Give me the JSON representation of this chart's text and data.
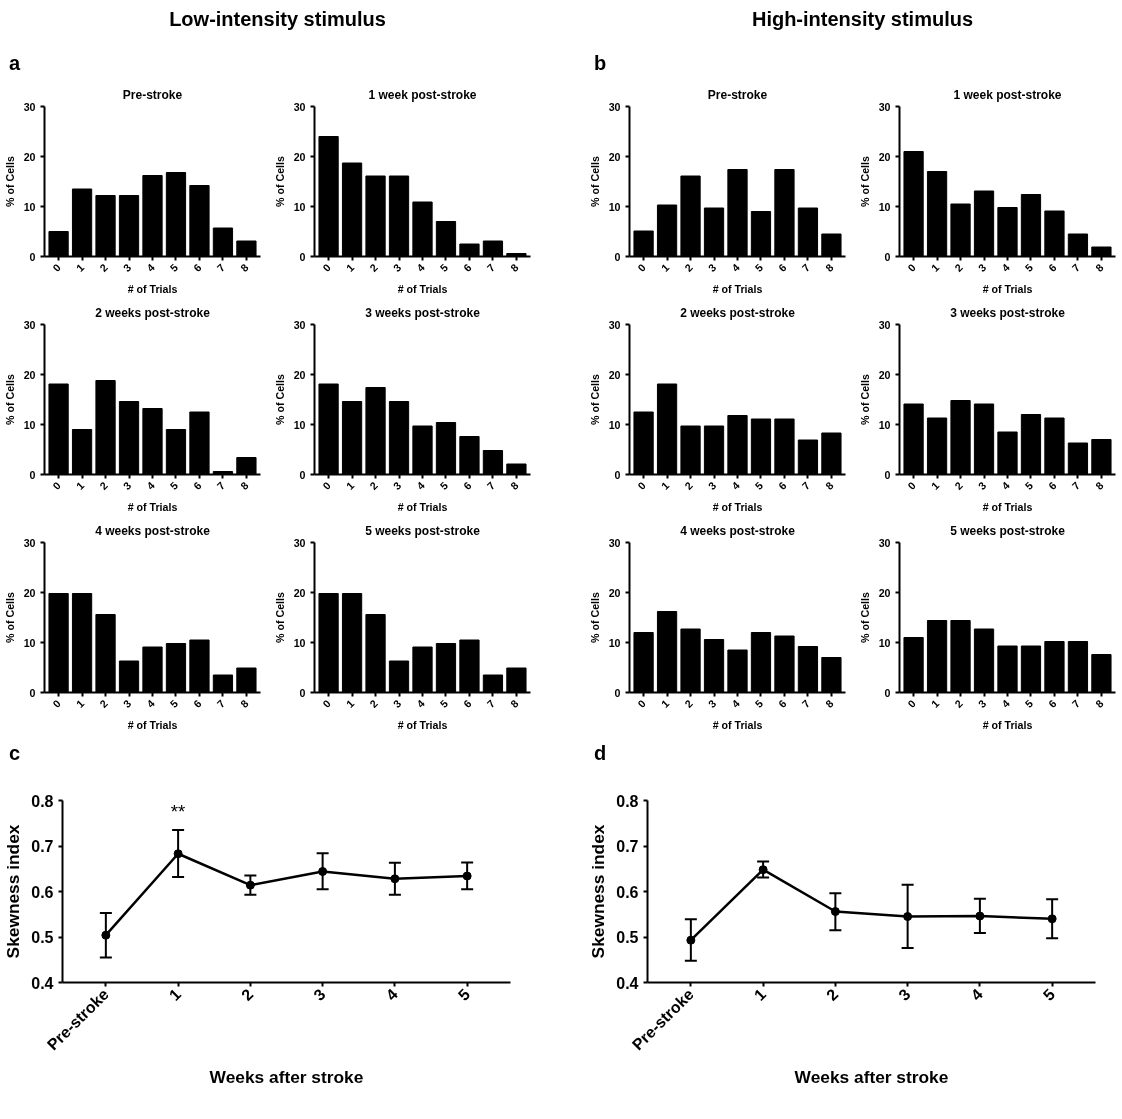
{
  "chart_data": [
    {
      "type": "bar",
      "title": "Pre-stroke",
      "xlabel": "# of Trials",
      "ylabel": "% of Cells",
      "annotations": [
        "Low-intensity stimulus",
        "a"
      ],
      "categories": [
        "0",
        "1",
        "2",
        "3",
        "4",
        "5",
        "6",
        "7",
        "8"
      ],
      "values": [
        5,
        13.5,
        12.2,
        12.2,
        16.2,
        16.8,
        14.2,
        5.7,
        3.1
      ],
      "color": "#000000",
      "ylim": [
        0,
        30
      ],
      "yticks": [
        0,
        10,
        20,
        30
      ]
    },
    {
      "type": "bar",
      "title": "1 week post-stroke",
      "xlabel": "# of Trials",
      "ylabel": "% of Cells",
      "categories": [
        "0",
        "1",
        "2",
        "3",
        "4",
        "5",
        "6",
        "7",
        "8"
      ],
      "values": [
        24,
        18.7,
        16.1,
        16.1,
        10.9,
        7.0,
        2.5,
        3.1,
        0.6
      ],
      "color": "#000000",
      "ylim": [
        0,
        30
      ],
      "yticks": [
        0,
        10,
        20,
        30
      ]
    },
    {
      "type": "bar",
      "title": "2 weeks post-stroke",
      "xlabel": "# of Trials",
      "ylabel": "% of Cells",
      "categories": [
        "0",
        "1",
        "2",
        "3",
        "4",
        "5",
        "6",
        "7",
        "8"
      ],
      "values": [
        18.1,
        9.0,
        18.8,
        14.6,
        13.2,
        9.0,
        12.5,
        0.6,
        3.4
      ],
      "color": "#000000",
      "ylim": [
        0,
        30
      ],
      "yticks": [
        0,
        10,
        20,
        30
      ]
    },
    {
      "type": "bar",
      "title": "3 weeks post-stroke",
      "xlabel": "# of Trials",
      "ylabel": "% of Cells",
      "categories": [
        "0",
        "1",
        "2",
        "3",
        "4",
        "5",
        "6",
        "7",
        "8"
      ],
      "values": [
        18.1,
        14.6,
        17.4,
        14.6,
        9.7,
        10.4,
        7.6,
        4.8,
        2.1
      ],
      "color": "#000000",
      "ylim": [
        0,
        30
      ],
      "yticks": [
        0,
        10,
        20,
        30
      ]
    },
    {
      "type": "bar",
      "title": "4 weeks post-stroke",
      "xlabel": "# of Trials",
      "ylabel": "% of Cells",
      "categories": [
        "0",
        "1",
        "2",
        "3",
        "4",
        "5",
        "6",
        "7",
        "8"
      ],
      "values": [
        19.8,
        19.8,
        15.6,
        6.3,
        9.1,
        9.8,
        10.5,
        3.5,
        4.9
      ],
      "color": "#000000",
      "ylim": [
        0,
        30
      ],
      "yticks": [
        0,
        10,
        20,
        30
      ]
    },
    {
      "type": "bar",
      "title": "5 weeks post-stroke",
      "xlabel": "# of Trials",
      "ylabel": "% of Cells",
      "categories": [
        "0",
        "1",
        "2",
        "3",
        "4",
        "5",
        "6",
        "7",
        "8"
      ],
      "values": [
        19.8,
        19.8,
        15.6,
        6.3,
        9.1,
        9.8,
        10.5,
        3.5,
        4.9
      ],
      "color": "#000000",
      "ylim": [
        0,
        30
      ],
      "yticks": [
        0,
        10,
        20,
        30
      ]
    },
    {
      "type": "bar",
      "title": "Pre-stroke",
      "xlabel": "# of Trials",
      "ylabel": "% of Cells",
      "annotations": [
        "High-intensity stimulus",
        "b"
      ],
      "categories": [
        "0",
        "1",
        "2",
        "3",
        "4",
        "5",
        "6",
        "7",
        "8"
      ],
      "values": [
        5.1,
        10.3,
        16.1,
        9.7,
        17.4,
        9.0,
        17.4,
        9.7,
        4.5
      ],
      "color": "#000000",
      "ylim": [
        0,
        30
      ],
      "yticks": [
        0,
        10,
        20,
        30
      ]
    },
    {
      "type": "bar",
      "title": "1 week post-stroke",
      "xlabel": "# of Trials",
      "ylabel": "% of Cells",
      "categories": [
        "0",
        "1",
        "2",
        "3",
        "4",
        "5",
        "6",
        "7",
        "8"
      ],
      "values": [
        21.0,
        17.0,
        10.5,
        13.1,
        9.8,
        12.4,
        9.1,
        4.5,
        1.9
      ],
      "color": "#000000",
      "ylim": [
        0,
        30
      ],
      "yticks": [
        0,
        10,
        20,
        30
      ]
    },
    {
      "type": "bar",
      "title": "2 weeks post-stroke",
      "xlabel": "# of Trials",
      "ylabel": "% of Cells",
      "categories": [
        "0",
        "1",
        "2",
        "3",
        "4",
        "5",
        "6",
        "7",
        "8"
      ],
      "values": [
        12.5,
        18.1,
        9.7,
        9.7,
        11.8,
        11.1,
        11.1,
        6.9,
        8.3
      ],
      "color": "#000000",
      "ylim": [
        0,
        30
      ],
      "yticks": [
        0,
        10,
        20,
        30
      ]
    },
    {
      "type": "bar",
      "title": "3 weeks post-stroke",
      "xlabel": "# of Trials",
      "ylabel": "% of Cells",
      "categories": [
        "0",
        "1",
        "2",
        "3",
        "4",
        "5",
        "6",
        "7",
        "8"
      ],
      "values": [
        14.1,
        11.3,
        14.8,
        14.1,
        8.5,
        12.0,
        11.3,
        6.3,
        7.0
      ],
      "color": "#000000",
      "ylim": [
        0,
        30
      ],
      "yticks": [
        0,
        10,
        20,
        30
      ]
    },
    {
      "type": "bar",
      "title": "4 weeks post-stroke",
      "xlabel": "# of Trials",
      "ylabel": "% of Cells",
      "categories": [
        "0",
        "1",
        "2",
        "3",
        "4",
        "5",
        "6",
        "7",
        "8"
      ],
      "values": [
        12.0,
        16.2,
        12.7,
        10.6,
        8.5,
        12.0,
        11.3,
        9.2,
        7.0
      ],
      "color": "#000000",
      "ylim": [
        0,
        30
      ],
      "yticks": [
        0,
        10,
        20,
        30
      ]
    },
    {
      "type": "bar",
      "title": "5 weeks post-stroke",
      "xlabel": "# of Trials",
      "ylabel": "% of Cells",
      "categories": [
        "0",
        "1",
        "2",
        "3",
        "4",
        "5",
        "6",
        "7",
        "8"
      ],
      "values": [
        11.0,
        14.4,
        14.4,
        12.7,
        9.3,
        9.3,
        10.2,
        10.2,
        7.6
      ],
      "color": "#000000",
      "ylim": [
        0,
        30
      ],
      "yticks": [
        0,
        10,
        20,
        30
      ]
    },
    {
      "type": "line",
      "xlabel": "Weeks after stroke",
      "ylabel": "Skewness index",
      "annotations": [
        "c",
        "**"
      ],
      "categories": [
        "Pre-stroke",
        "1",
        "2",
        "3",
        "4",
        "5"
      ],
      "values": [
        0.504,
        0.683,
        0.614,
        0.644,
        0.628,
        0.634
      ],
      "errors": [
        [
          0.455,
          0.553
        ],
        [
          0.632,
          0.735
        ],
        [
          0.593,
          0.635
        ],
        [
          0.605,
          0.684
        ],
        [
          0.593,
          0.663
        ],
        [
          0.605,
          0.664
        ]
      ],
      "color": "#000000",
      "marker": "circle",
      "ylim": [
        0.4,
        0.8
      ],
      "yticks": [
        0.4,
        0.5,
        0.6,
        0.7,
        0.8
      ]
    },
    {
      "type": "line",
      "xlabel": "Weeks after stroke",
      "ylabel": "Skewness index",
      "annotations": [
        "d"
      ],
      "categories": [
        "Pre-stroke",
        "1",
        "2",
        "3",
        "4",
        "5"
      ],
      "values": [
        0.493,
        0.648,
        0.556,
        0.545,
        0.546,
        0.54
      ],
      "errors": [
        [
          0.448,
          0.539
        ],
        [
          0.631,
          0.666
        ],
        [
          0.515,
          0.596
        ],
        [
          0.476,
          0.615
        ],
        [
          0.509,
          0.584
        ],
        [
          0.497,
          0.583
        ]
      ],
      "color": "#000000",
      "marker": "circle",
      "ylim": [
        0.4,
        0.8
      ],
      "yticks": [
        0.4,
        0.5,
        0.6,
        0.7,
        0.8
      ]
    }
  ]
}
